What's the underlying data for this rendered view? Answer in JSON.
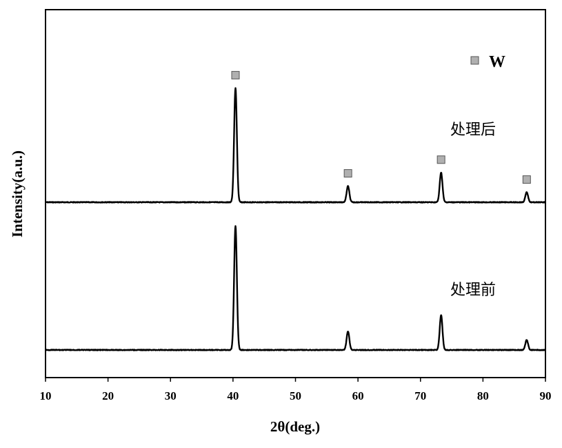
{
  "chart_data": {
    "type": "line",
    "xlabel": "2θ(deg.)",
    "ylabel": "Intensity(a.u.)",
    "xlim": [
      10,
      90
    ],
    "xticks": [
      10,
      20,
      30,
      40,
      50,
      60,
      70,
      80,
      90
    ],
    "grid": false,
    "legend": {
      "position": "top-right",
      "entries": [
        {
          "label": "W",
          "marker": "square",
          "color": "#b0b0b0"
        }
      ]
    },
    "peak_marker_color": "#b0b0b0",
    "line_color": "#000000",
    "series": [
      {
        "name": "处理后",
        "peaks": [
          {
            "x": 40.4,
            "height": 0.92
          },
          {
            "x": 58.4,
            "height": 0.13
          },
          {
            "x": 73.3,
            "height": 0.24
          },
          {
            "x": 87.0,
            "height": 0.08
          }
        ],
        "marked_peaks": [
          40.4,
          58.4,
          73.3,
          87.0
        ]
      },
      {
        "name": "处理前",
        "peaks": [
          {
            "x": 40.4,
            "height": 1.0
          },
          {
            "x": 58.4,
            "height": 0.15
          },
          {
            "x": 73.3,
            "height": 0.28
          },
          {
            "x": 87.0,
            "height": 0.08
          }
        ],
        "marked_peaks": []
      }
    ]
  }
}
